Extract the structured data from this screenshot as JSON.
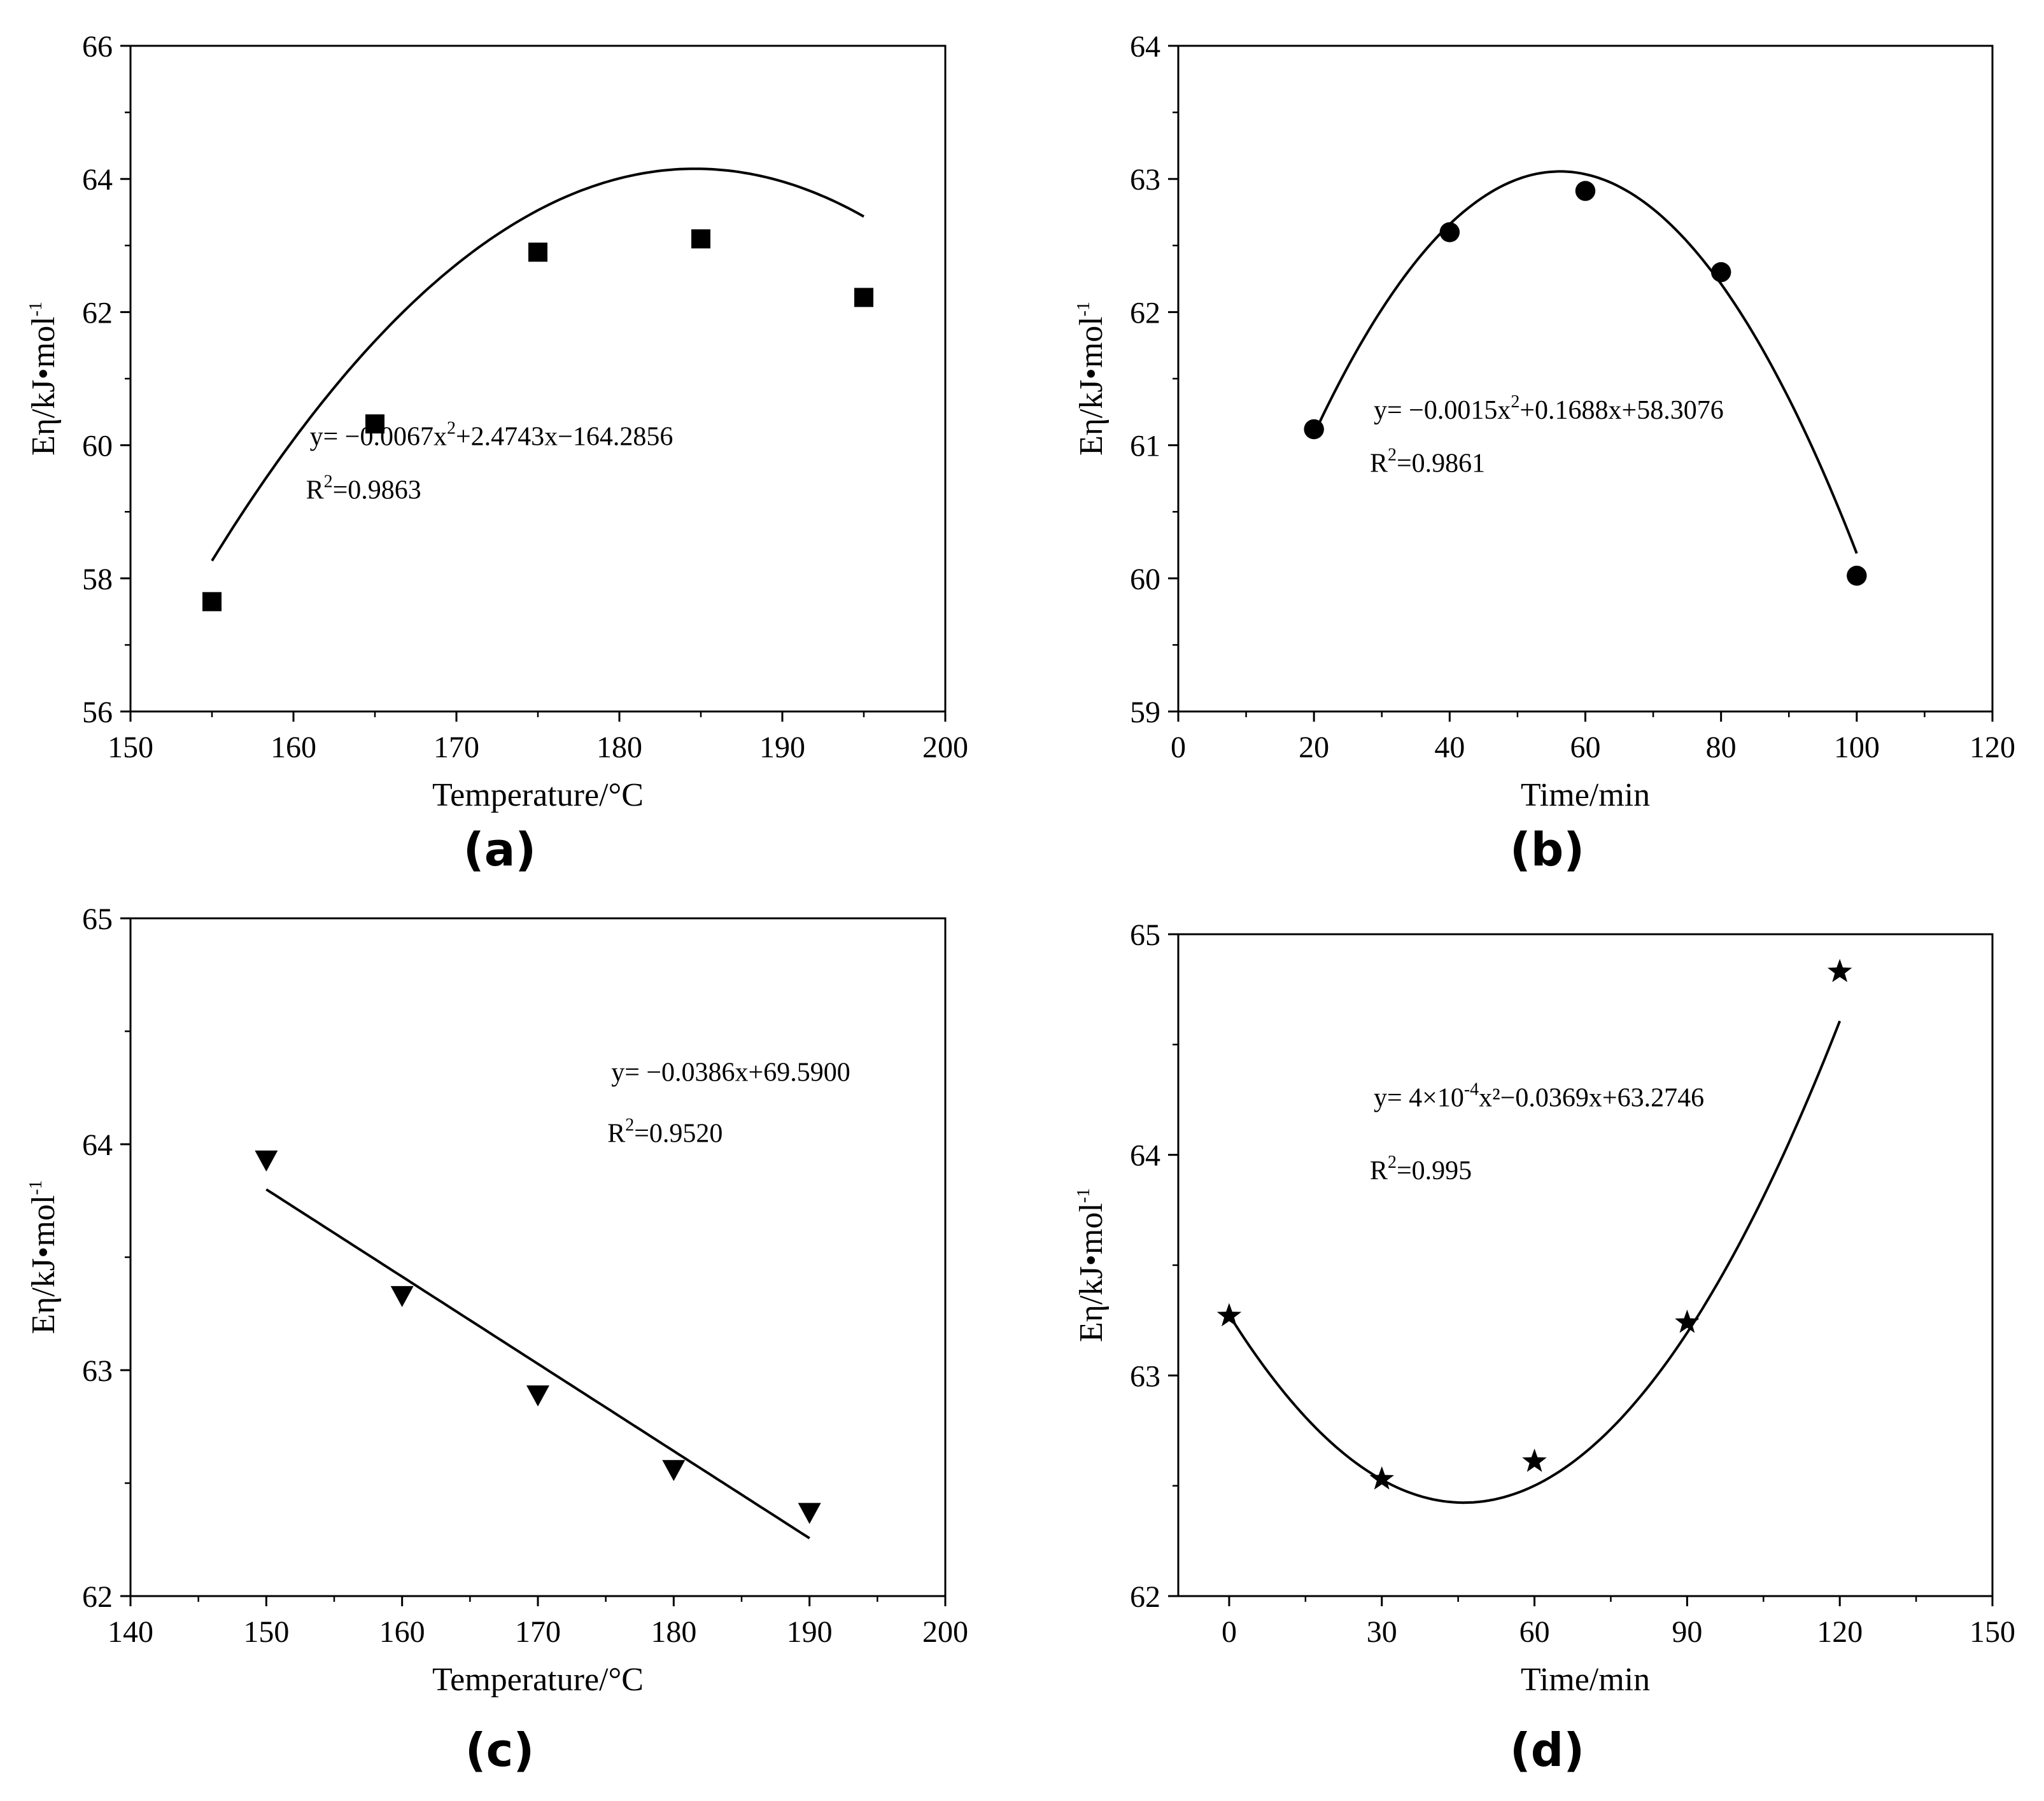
{
  "chart_data": [
    {
      "panel": "(a)",
      "type": "scatter",
      "marker": "square",
      "xlabel": "Temperature/°C",
      "ylabel": "Eη/kJ•mol",
      "ylabel_sup": "-1",
      "xlim": [
        150,
        200
      ],
      "ylim": [
        56,
        66
      ],
      "xticks": [
        150,
        160,
        170,
        180,
        190,
        200
      ],
      "yticks": [
        56,
        58,
        60,
        62,
        64,
        66
      ],
      "x": [
        155,
        165,
        175,
        185,
        195
      ],
      "y": [
        57.65,
        60.32,
        62.9,
        63.1,
        62.22
      ],
      "fit": {
        "kind": "poly",
        "coef": [
          -164.2856,
          2.4743,
          -0.0067
        ],
        "xrange": [
          155,
          195
        ]
      },
      "equation": {
        "prefix": "y= −0.0067x",
        "sup": "2",
        "suffix": "+2.4743x−164.2856"
      },
      "r2": {
        "prefix": "R",
        "sup": "2",
        "suffix": "=0.9863"
      }
    },
    {
      "panel": "(b)",
      "type": "scatter",
      "marker": "circle",
      "xlabel": "Time/min",
      "ylabel": "Eη/kJ•mol",
      "ylabel_sup": "-1",
      "xlim": [
        0,
        120
      ],
      "ylim": [
        59,
        64
      ],
      "xticks": [
        0,
        20,
        40,
        60,
        80,
        100,
        120
      ],
      "yticks": [
        59,
        60,
        61,
        62,
        63,
        64
      ],
      "x": [
        20,
        40,
        60,
        80,
        100
      ],
      "y": [
        61.12,
        62.6,
        62.91,
        62.3,
        60.02
      ],
      "fit": {
        "kind": "poly",
        "coef": [
          58.3076,
          0.1688,
          -0.0015
        ],
        "xrange": [
          20,
          100
        ]
      },
      "equation": {
        "prefix": "y= −0.0015x",
        "sup": "2",
        "suffix": "+0.1688x+58.3076"
      },
      "r2": {
        "prefix": "R",
        "sup": "2",
        "suffix": "=0.9861"
      }
    },
    {
      "panel": "(c)",
      "type": "scatter",
      "marker": "triangle-down",
      "xlabel": "Temperature/°C",
      "ylabel": "Eη/kJ•mol",
      "ylabel_sup": "-1",
      "xlim": [
        140,
        200
      ],
      "ylim": [
        62,
        65
      ],
      "xticks": [
        140,
        150,
        160,
        170,
        180,
        190,
        200
      ],
      "yticks": [
        62,
        63,
        64,
        65
      ],
      "x": [
        150,
        160,
        170,
        180,
        190
      ],
      "y": [
        63.93,
        63.33,
        62.89,
        62.56,
        62.37
      ],
      "fit": {
        "kind": "poly",
        "coef": [
          69.59,
          -0.0386
        ],
        "xrange": [
          150,
          190
        ]
      },
      "equation": {
        "prefix": "y= −0.0386x+69.5900",
        "sup": "",
        "suffix": ""
      },
      "r2": {
        "prefix": "R",
        "sup": "2",
        "suffix": "=0.9520"
      }
    },
    {
      "panel": "(d)",
      "type": "scatter",
      "marker": "star",
      "xlabel": "Time/min",
      "ylabel": "Eη/kJ•mol",
      "ylabel_sup": "-1",
      "xlim": [
        -10,
        150
      ],
      "ylim": [
        62,
        65
      ],
      "xticks": [
        0,
        30,
        60,
        90,
        120,
        150
      ],
      "yticks": [
        62,
        63,
        64,
        65
      ],
      "x": [
        0,
        30,
        60,
        90,
        120
      ],
      "y": [
        63.27,
        62.53,
        62.61,
        63.24,
        64.83
      ],
      "fit": {
        "kind": "poly",
        "coef": [
          63.2746,
          -0.0369,
          0.0004
        ],
        "xrange": [
          0,
          120
        ]
      },
      "equation": {
        "prefix": "y= 4×10",
        "sup": "-4",
        "suffix": "x²−0.0369x+63.2746"
      },
      "r2": {
        "prefix": "R",
        "sup": "2",
        "suffix": "=0.995"
      }
    }
  ]
}
